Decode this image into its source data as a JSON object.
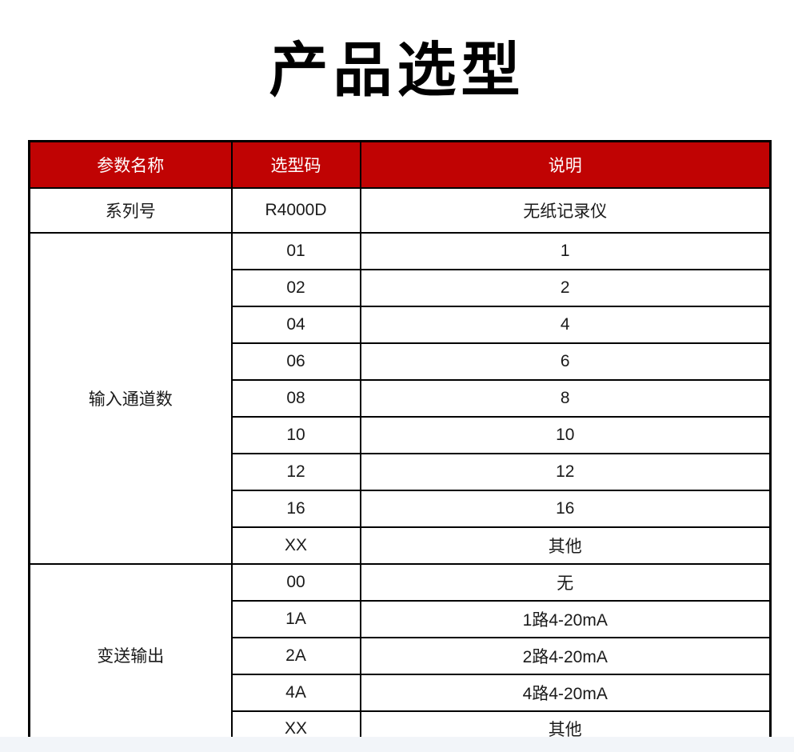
{
  "page": {
    "title": "产品选型"
  },
  "table": {
    "columns": [
      "参数名称",
      "选型码",
      "说明"
    ],
    "groups": [
      {
        "name": "系列号",
        "rows": [
          {
            "code": "R4000D",
            "desc": "无纸记录仪"
          }
        ]
      },
      {
        "name": "输入通道数",
        "rows": [
          {
            "code": "01",
            "desc": "1"
          },
          {
            "code": "02",
            "desc": "2"
          },
          {
            "code": "04",
            "desc": "4"
          },
          {
            "code": "06",
            "desc": "6"
          },
          {
            "code": "08",
            "desc": "8"
          },
          {
            "code": "10",
            "desc": "10"
          },
          {
            "code": "12",
            "desc": "12"
          },
          {
            "code": "16",
            "desc": "16"
          },
          {
            "code": "XX",
            "desc": "其他"
          }
        ]
      },
      {
        "name": "变送输出",
        "rows": [
          {
            "code": "00",
            "desc": "无"
          },
          {
            "code": "1A",
            "desc": "1路4-20mA"
          },
          {
            "code": "2A",
            "desc": "2路4-20mA"
          },
          {
            "code": "4A",
            "desc": "4路4-20mA"
          },
          {
            "code": "XX",
            "desc": "其他"
          }
        ]
      }
    ]
  },
  "colors": {
    "header_bg": "#c00303",
    "header_text": "#ffffff",
    "border": "#000000",
    "bottom_strip": "#f2f5f9"
  }
}
